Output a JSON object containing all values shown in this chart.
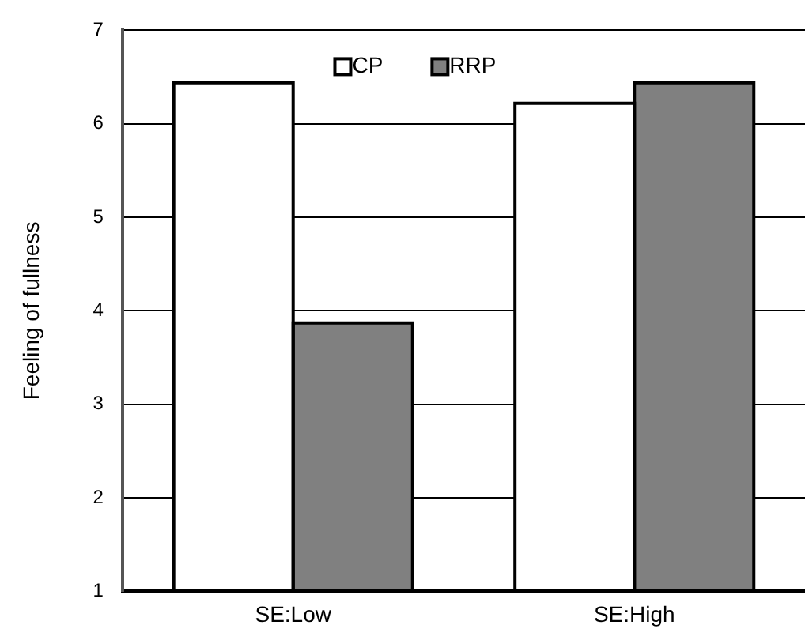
{
  "chart_data": {
    "type": "bar",
    "ylabel": "Feeling of fullness",
    "categories": [
      "SE:Low",
      "SE:High"
    ],
    "series": [
      {
        "name": "CP",
        "color": "#ffffff",
        "values": [
          6.44,
          6.22
        ]
      },
      {
        "name": "RRP",
        "color": "#808080",
        "values": [
          3.87,
          6.44
        ]
      }
    ],
    "ylim": [
      1,
      7
    ],
    "yticks": [
      1,
      2,
      3,
      4,
      5,
      6,
      7
    ],
    "grid": "y",
    "legend": "top"
  }
}
